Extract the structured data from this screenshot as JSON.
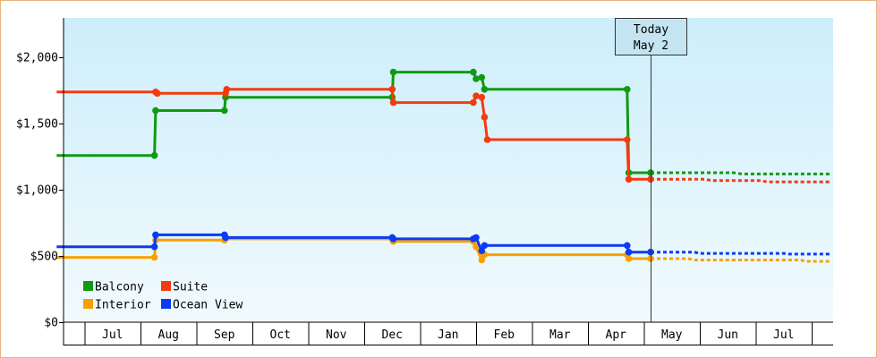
{
  "chart_data": {
    "type": "line",
    "title": "",
    "xlabel": "",
    "ylabel": "",
    "ylim": [
      0,
      2300
    ],
    "yticks": [
      {
        "value": 0,
        "label": "$0"
      },
      {
        "value": 500,
        "label": "$500"
      },
      {
        "value": 1000,
        "label": "$1,000"
      },
      {
        "value": 1500,
        "label": "$1,500"
      },
      {
        "value": 2000,
        "label": "$2,000"
      }
    ],
    "months": [
      "Jul",
      "Aug",
      "Sep",
      "Oct",
      "Nov",
      "Dec",
      "Jan",
      "Feb",
      "Mar",
      "Apr",
      "May",
      "Jun",
      "Jul"
    ],
    "today": {
      "line1": "Today",
      "line2": "May 2",
      "x": 10.12
    },
    "grid": false,
    "background": {
      "top": "#cdeefb",
      "bottom": "#f1fafd"
    },
    "legend": {
      "position": "bottom-left"
    },
    "series": [
      {
        "name": "Balcony",
        "color": "#109a10",
        "points": [
          [
            -0.5,
            1260
          ],
          [
            1.25,
            1260
          ],
          [
            1.27,
            1600
          ],
          [
            2.5,
            1600
          ],
          [
            2.52,
            1700
          ],
          [
            5.5,
            1700
          ],
          [
            5.52,
            1890
          ],
          [
            6.95,
            1890
          ],
          [
            7.0,
            1840
          ],
          [
            7.1,
            1850
          ],
          [
            7.15,
            1760
          ],
          [
            9.7,
            1760
          ],
          [
            9.73,
            1130
          ],
          [
            10.12,
            1130
          ]
        ],
        "forecast": [
          [
            10.12,
            1130
          ],
          [
            11.6,
            1130
          ],
          [
            11.75,
            1120
          ],
          [
            13.35,
            1120
          ]
        ]
      },
      {
        "name": "Suite",
        "color": "#f53a0e",
        "points": [
          [
            -0.5,
            1740
          ],
          [
            1.27,
            1740
          ],
          [
            1.3,
            1730
          ],
          [
            2.52,
            1730
          ],
          [
            2.54,
            1760
          ],
          [
            5.5,
            1760
          ],
          [
            5.52,
            1660
          ],
          [
            6.95,
            1660
          ],
          [
            7.0,
            1710
          ],
          [
            7.1,
            1700
          ],
          [
            7.15,
            1550
          ],
          [
            7.2,
            1380
          ],
          [
            9.7,
            1380
          ],
          [
            9.73,
            1080
          ],
          [
            10.12,
            1080
          ]
        ],
        "forecast": [
          [
            10.12,
            1080
          ],
          [
            11.1,
            1080
          ],
          [
            11.2,
            1070
          ],
          [
            12.1,
            1070
          ],
          [
            12.2,
            1060
          ],
          [
            13.35,
            1060
          ]
        ]
      },
      {
        "name": "Interior",
        "color": "#f7a100",
        "points": [
          [
            -0.5,
            490
          ],
          [
            1.25,
            490
          ],
          [
            1.27,
            620
          ],
          [
            2.5,
            620
          ],
          [
            2.52,
            630
          ],
          [
            5.5,
            630
          ],
          [
            5.52,
            610
          ],
          [
            6.95,
            610
          ],
          [
            7.0,
            570
          ],
          [
            7.1,
            470
          ],
          [
            7.15,
            510
          ],
          [
            9.7,
            510
          ],
          [
            9.73,
            480
          ],
          [
            10.12,
            480
          ]
        ],
        "forecast": [
          [
            10.12,
            480
          ],
          [
            10.8,
            480
          ],
          [
            10.9,
            470
          ],
          [
            12.8,
            470
          ],
          [
            12.9,
            460
          ],
          [
            13.35,
            460
          ]
        ]
      },
      {
        "name": "Ocean View",
        "color": "#0a3cf5",
        "points": [
          [
            -0.5,
            570
          ],
          [
            1.25,
            570
          ],
          [
            1.27,
            660
          ],
          [
            2.5,
            660
          ],
          [
            2.52,
            640
          ],
          [
            5.5,
            640
          ],
          [
            5.52,
            630
          ],
          [
            6.95,
            630
          ],
          [
            7.0,
            640
          ],
          [
            7.1,
            540
          ],
          [
            7.15,
            580
          ],
          [
            9.7,
            580
          ],
          [
            9.73,
            530
          ],
          [
            10.12,
            530
          ]
        ],
        "forecast": [
          [
            10.12,
            530
          ],
          [
            10.9,
            530
          ],
          [
            11.0,
            520
          ],
          [
            12.5,
            520
          ],
          [
            12.6,
            515
          ],
          [
            13.35,
            515
          ]
        ]
      }
    ]
  }
}
